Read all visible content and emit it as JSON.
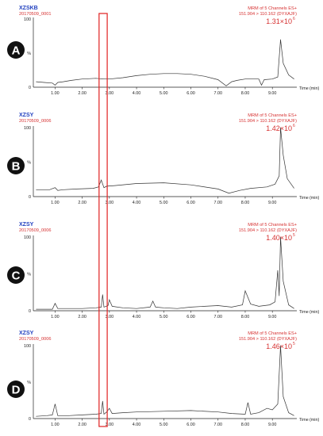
{
  "colors": {
    "sample": "#1f3fbf",
    "annotation": "#d63030",
    "trace": "#333333",
    "badge": "#111111",
    "highlight": "#e02020"
  },
  "chart_data": [
    {
      "type": "line",
      "panel": "A",
      "sample": "XZSKB",
      "run": "20170509_0001",
      "channel": "MRM of 5 Channels ES+",
      "transition": "151.904 > 110.162 (DYXAJF)",
      "intensity_base": "1.31×10",
      "intensity_exp": "6",
      "xlabel": "Time",
      "xunit": "(min)",
      "xlim": [
        0.2,
        9.9
      ],
      "xticks": [
        "1.00",
        "2.00",
        "3.00",
        "4.00",
        "5.00",
        "6.00",
        "7.00",
        "8.00",
        "9.00"
      ],
      "yticks": [
        "0",
        "%",
        "100"
      ],
      "ylim": [
        0,
        100
      ],
      "x": [
        0.3,
        0.6,
        0.9,
        1.0,
        1.1,
        1.3,
        1.6,
        2.0,
        2.5,
        2.8,
        3.0,
        3.5,
        4.0,
        4.5,
        5.0,
        5.5,
        6.0,
        6.5,
        7.0,
        7.3,
        7.5,
        7.7,
        8.0,
        8.5,
        8.6,
        8.7,
        9.0,
        9.2,
        9.3,
        9.4,
        9.6,
        9.8
      ],
      "y": [
        8,
        7,
        6,
        3,
        7,
        8,
        10,
        12,
        13,
        12,
        12,
        14,
        17,
        19,
        20,
        20,
        19,
        16,
        11,
        2,
        8,
        10,
        12,
        12,
        3,
        11,
        12,
        15,
        70,
        35,
        18,
        12
      ]
    },
    {
      "type": "line",
      "panel": "B",
      "sample": "XZSY",
      "run": "20170509_0006",
      "channel": "MRM of 5 Channels ES+",
      "transition": "151.904 > 110.162 (DYXAJF)",
      "intensity_base": "1.42×10",
      "intensity_exp": "6",
      "xlabel": "Time",
      "xunit": "(min)",
      "xlim": [
        0.2,
        9.9
      ],
      "xticks": [
        "1.00",
        "2.00",
        "3.00",
        "4.00",
        "5.00",
        "6.00",
        "7.00",
        "8.00",
        "9.00"
      ],
      "yticks": [
        "0",
        "%",
        "100"
      ],
      "ylim": [
        0,
        100
      ],
      "x": [
        0.3,
        0.8,
        1.0,
        1.1,
        1.3,
        1.8,
        2.4,
        2.6,
        2.7,
        2.8,
        2.9,
        3.2,
        4.0,
        5.0,
        6.0,
        7.0,
        7.4,
        7.8,
        8.2,
        8.8,
        9.1,
        9.25,
        9.3,
        9.4,
        9.55,
        9.8
      ],
      "y": [
        10,
        10,
        13,
        9,
        10,
        11,
        12,
        14,
        24,
        13,
        15,
        16,
        19,
        20,
        17,
        11,
        5,
        9,
        12,
        14,
        18,
        30,
        100,
        60,
        26,
        12
      ]
    },
    {
      "type": "line",
      "panel": "C",
      "sample": "XZSY",
      "run": "20170509_0006",
      "channel": "MRM of 5 Channels ES+",
      "transition": "151.904 > 110.162 (DYXAJF)",
      "intensity_base": "1.40×10",
      "intensity_exp": "5",
      "xlabel": "Time",
      "xunit": "(min)",
      "xlim": [
        0.2,
        9.9
      ],
      "xticks": [
        "1.00",
        "2.00",
        "3.00",
        "4.00",
        "5.00",
        "6.00",
        "7.00",
        "8.00",
        "9.00"
      ],
      "yticks": [
        "0",
        "%",
        "100"
      ],
      "ylim": [
        0,
        100
      ],
      "x": [
        0.3,
        0.9,
        1.0,
        1.1,
        1.5,
        2.0,
        2.5,
        2.7,
        2.75,
        2.8,
        2.95,
        3.0,
        3.1,
        3.5,
        4.0,
        4.5,
        4.6,
        4.7,
        5.0,
        5.5,
        6.0,
        6.5,
        7.0,
        7.5,
        7.9,
        8.0,
        8.2,
        8.5,
        8.9,
        9.1,
        9.2,
        9.25,
        9.3,
        9.4,
        9.6,
        9.8
      ],
      "y": [
        2,
        2,
        10,
        3,
        3,
        3,
        4,
        5,
        22,
        5,
        7,
        15,
        6,
        4,
        3,
        5,
        13,
        5,
        4,
        3,
        5,
        6,
        7,
        5,
        8,
        27,
        9,
        6,
        8,
        12,
        55,
        20,
        100,
        40,
        8,
        3
      ]
    },
    {
      "type": "line",
      "panel": "D",
      "sample": "XZSY",
      "run": "20170509_0006",
      "channel": "MRM of 5 Channels ES+",
      "transition": "151.904 > 110.162 (DYXAJF)",
      "intensity_base": "1.46×10",
      "intensity_exp": "5",
      "xlabel": "Time",
      "xunit": "(min)",
      "xlim": [
        0.2,
        9.9
      ],
      "xticks": [
        "1.00",
        "2.00",
        "3.00",
        "4.00",
        "5.00",
        "6.00",
        "7.00",
        "8.00",
        "9.00"
      ],
      "yticks": [
        "0",
        "%",
        "100"
      ],
      "ylim": [
        0,
        100
      ],
      "x": [
        0.3,
        0.7,
        0.9,
        1.0,
        1.1,
        1.5,
        2.0,
        2.5,
        2.7,
        2.75,
        2.8,
        2.9,
        3.0,
        3.1,
        3.5,
        4.0,
        5.0,
        6.0,
        7.0,
        7.5,
        8.0,
        8.1,
        8.2,
        8.5,
        8.8,
        9.0,
        9.2,
        9.3,
        9.4,
        9.6,
        9.8
      ],
      "y": [
        3,
        4,
        5,
        20,
        4,
        4,
        5,
        6,
        7,
        24,
        6,
        9,
        14,
        7,
        8,
        9,
        10,
        11,
        9,
        7,
        6,
        22,
        6,
        8,
        14,
        12,
        20,
        100,
        30,
        8,
        4
      ]
    }
  ]
}
